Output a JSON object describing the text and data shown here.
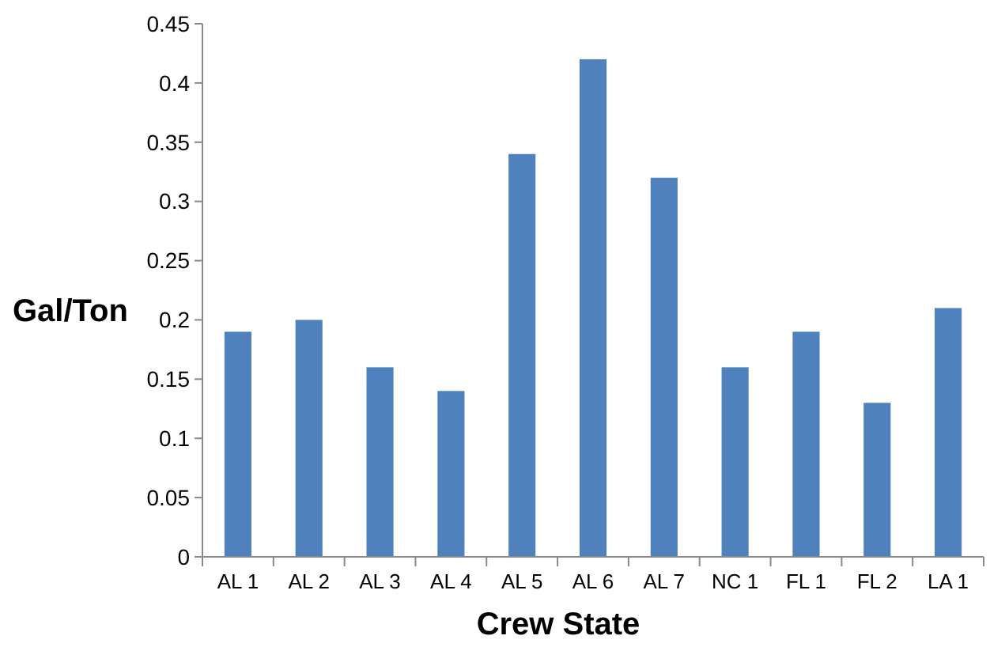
{
  "chart_data": {
    "type": "bar",
    "xlabel": "Crew State",
    "ylabel": "Gal/Ton",
    "categories": [
      "AL 1",
      "AL 2",
      "AL 3",
      "AL 4",
      "AL 5",
      "AL 6",
      "AL 7",
      "NC 1",
      "FL 1",
      "FL 2",
      "LA 1"
    ],
    "values": [
      0.19,
      0.2,
      0.16,
      0.14,
      0.34,
      0.42,
      0.32,
      0.16,
      0.19,
      0.13,
      0.21
    ],
    "color": "#4f81bd",
    "ylim": [
      0,
      0.45
    ],
    "yticks": [
      0,
      0.05,
      0.1,
      0.15,
      0.2,
      0.25,
      0.3,
      0.35,
      0.4,
      0.45
    ],
    "grid": false
  }
}
